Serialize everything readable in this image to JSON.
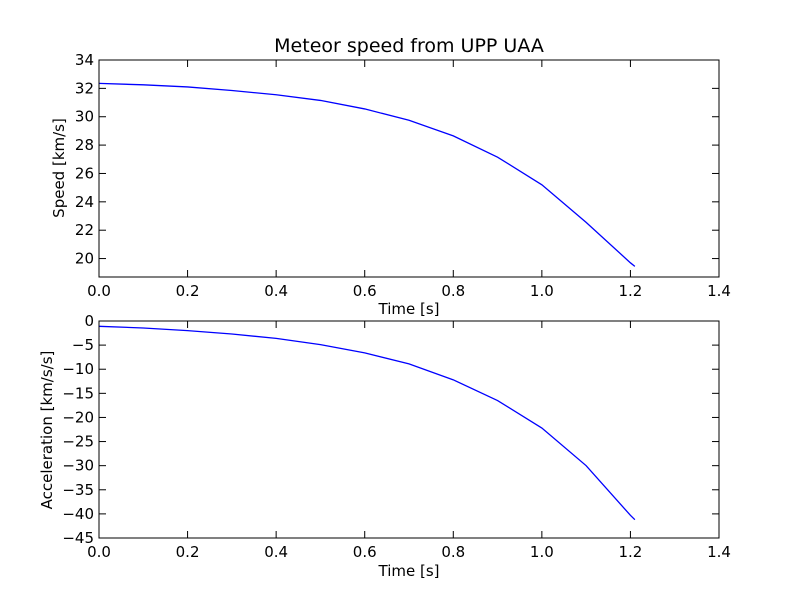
{
  "figure": {
    "background": "#ffffff",
    "line_color": "#0000ff"
  },
  "chart_data": [
    {
      "type": "line",
      "title": "Meteor speed from  UPP UAA",
      "xlabel": "Time [s]",
      "ylabel": "Speed [km/s]",
      "xlim": [
        0.0,
        1.4
      ],
      "ylim": [
        18.7,
        34
      ],
      "xticks": [
        "0.0",
        "0.2",
        "0.4",
        "0.6",
        "0.8",
        "1.0",
        "1.2",
        "1.4"
      ],
      "yticks": [
        "20",
        "22",
        "24",
        "26",
        "28",
        "30",
        "32",
        "34"
      ],
      "grid": false,
      "series": [
        {
          "x": [
            0.0,
            0.1,
            0.2,
            0.3,
            0.4,
            0.5,
            0.6,
            0.7,
            0.8,
            0.9,
            1.0,
            1.1,
            1.2,
            1.21
          ],
          "y": [
            32.35,
            32.25,
            32.1,
            31.85,
            31.55,
            31.15,
            30.55,
            29.75,
            28.65,
            27.15,
            25.2,
            22.55,
            19.7,
            19.45
          ]
        }
      ]
    },
    {
      "type": "line",
      "title": "",
      "xlabel": "Time [s]",
      "ylabel": "Acceleration [km/s/s]",
      "xlim": [
        0.0,
        1.4
      ],
      "ylim": [
        -45,
        0
      ],
      "xticks": [
        "0.0",
        "0.2",
        "0.4",
        "0.6",
        "0.8",
        "1.0",
        "1.2",
        "1.4"
      ],
      "yticks": [
        "0",
        "−5",
        "−10",
        "−15",
        "−20",
        "−25",
        "−30",
        "−35",
        "−40",
        "−45"
      ],
      "grid": false,
      "series": [
        {
          "x": [
            0.0,
            0.1,
            0.2,
            0.3,
            0.4,
            0.5,
            0.6,
            0.7,
            0.8,
            0.9,
            1.0,
            1.1,
            1.2,
            1.21
          ],
          "y": [
            -1.1,
            -1.45,
            -2.0,
            -2.7,
            -3.6,
            -4.9,
            -6.6,
            -8.9,
            -12.2,
            -16.5,
            -22.2,
            -30.0,
            -40.3,
            -41.2
          ]
        }
      ]
    }
  ]
}
